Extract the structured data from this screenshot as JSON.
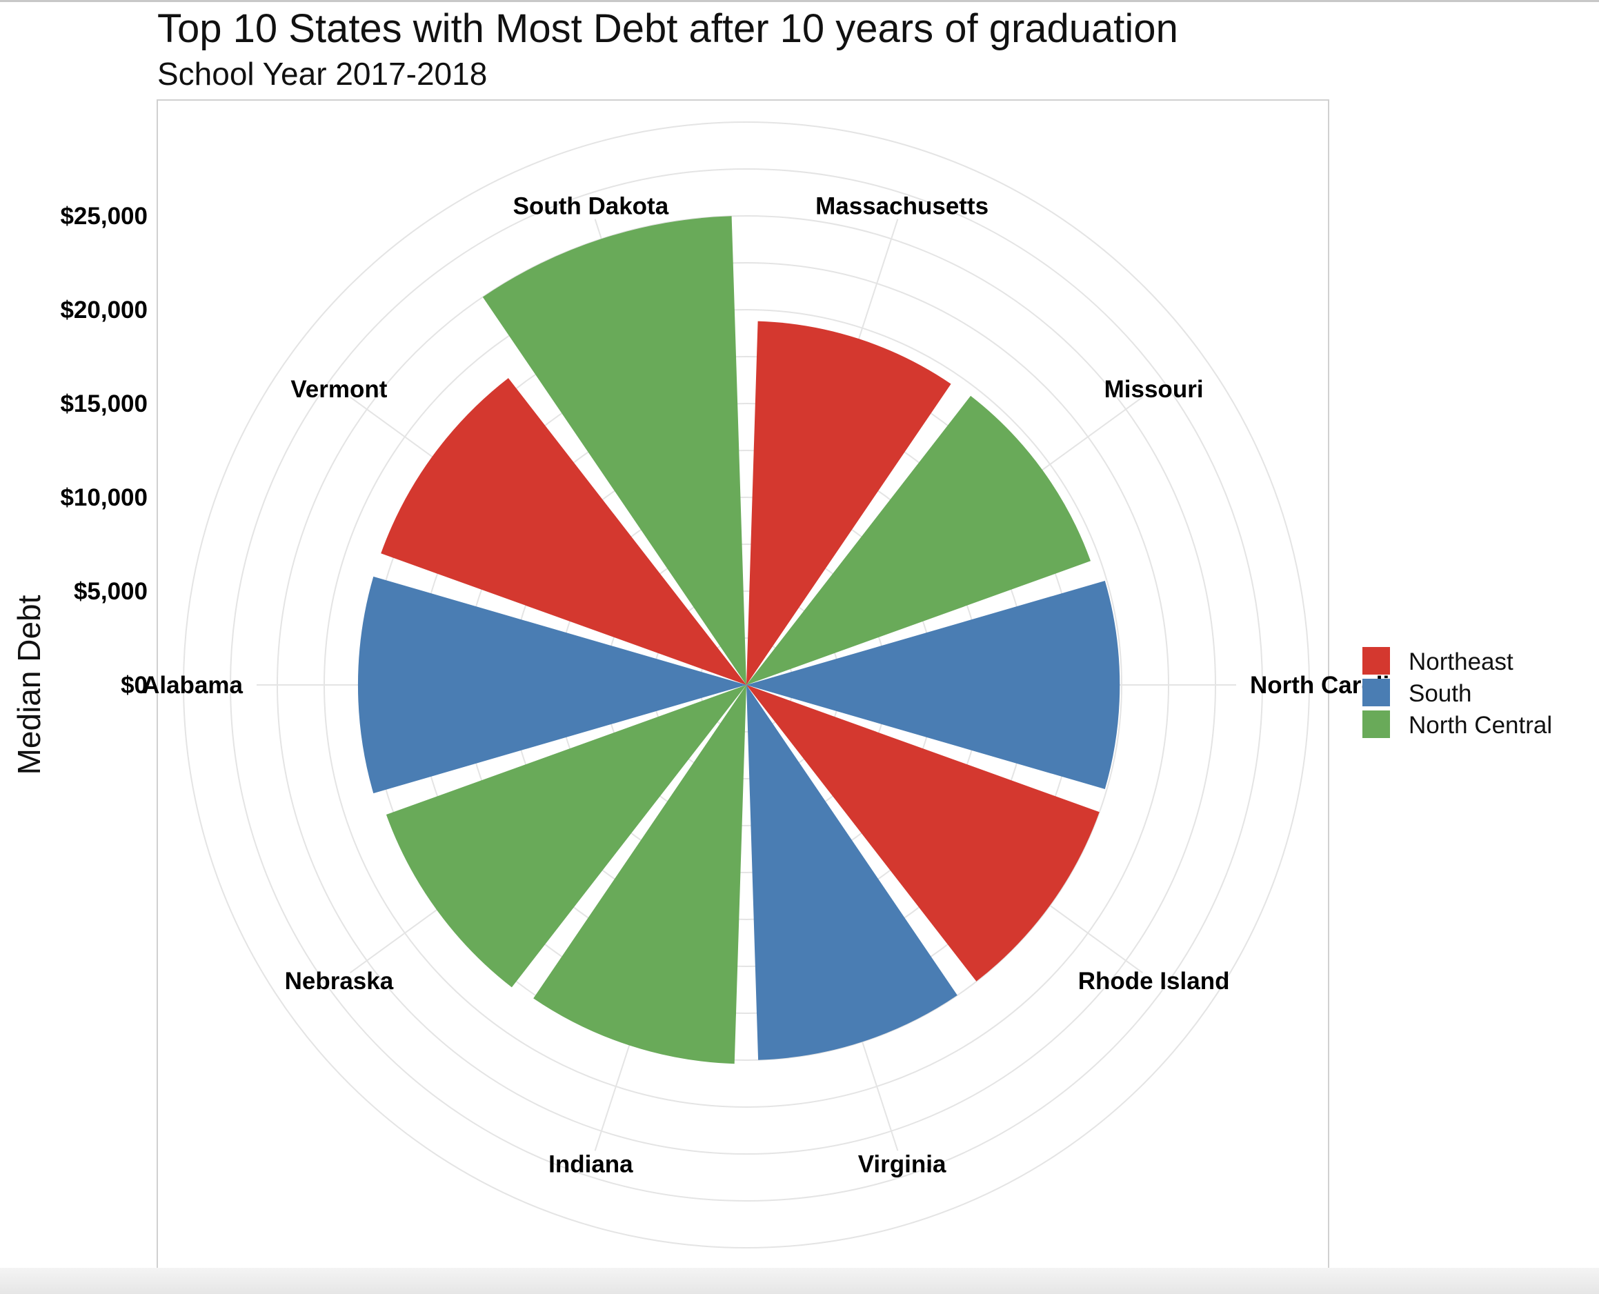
{
  "chart_data": {
    "type": "bar",
    "coordinate_system": "polar",
    "title": "Top 10 States with Most Debt after 10 years of graduation",
    "subtitle": "School Year 2017-2018",
    "ylabel": "Median Debt",
    "yticks": [
      "$0",
      "$5,000",
      "$10,000",
      "$15,000",
      "$20,000",
      "$25,000"
    ],
    "ylim": [
      0,
      25000
    ],
    "grid": true,
    "legend_position": "right",
    "categories": [
      "Massachusetts",
      "Missouri",
      "North Caroli",
      "Rhode Island",
      "Virginia",
      "Indiana",
      "Nebraska",
      "Alabama",
      "Vermont",
      "South Dakota"
    ],
    "values": [
      19400,
      19500,
      19900,
      20000,
      20000,
      20200,
      20400,
      20700,
      20700,
      25000
    ],
    "regions": [
      "Northeast",
      "North Central",
      "South",
      "Northeast",
      "South",
      "North Central",
      "North Central",
      "South",
      "Northeast",
      "North Central"
    ],
    "legend": [
      {
        "label": "Northeast",
        "color": "#d4382f"
      },
      {
        "label": "South",
        "color": "#4a7db3"
      },
      {
        "label": "North Central",
        "color": "#69aa59"
      }
    ]
  }
}
